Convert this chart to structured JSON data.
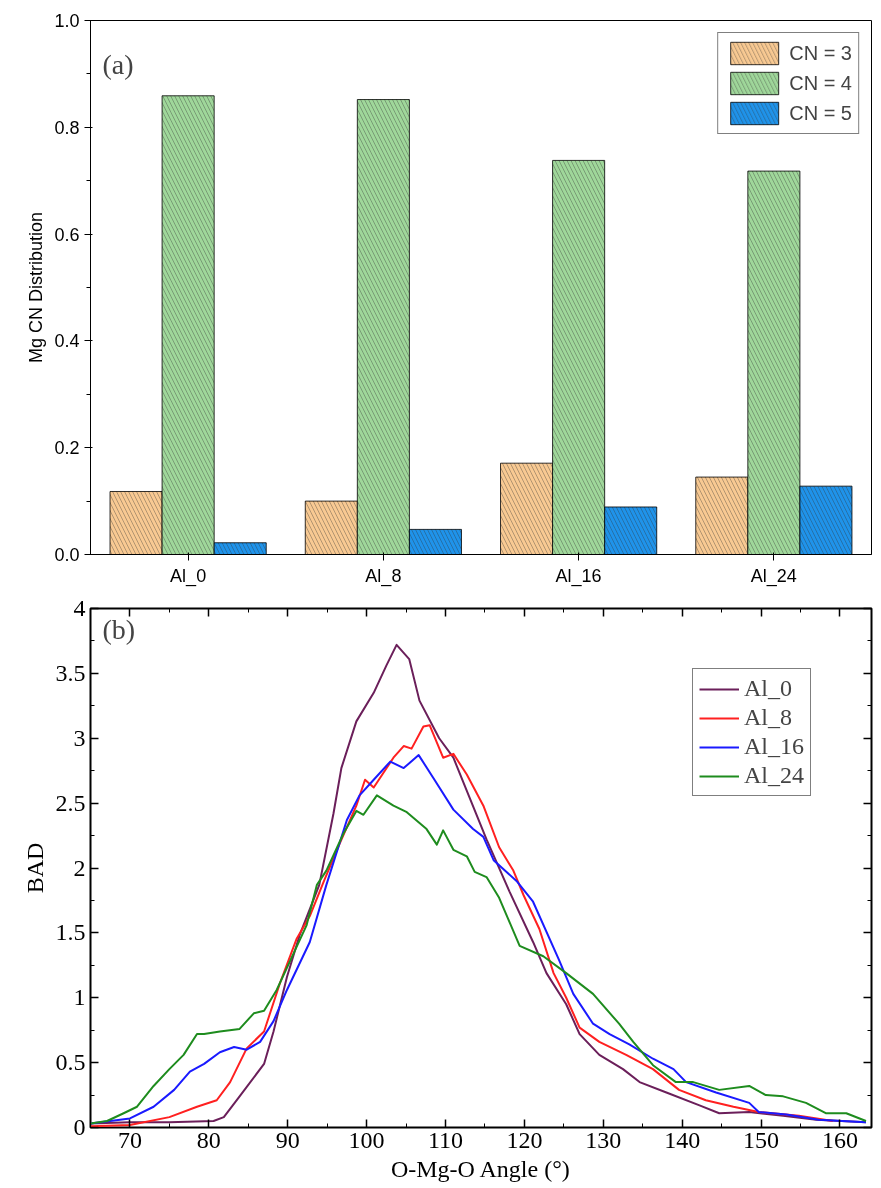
{
  "chart_data": [
    {
      "type": "bar",
      "ylabel": "Mg CN Distribution",
      "annotations": [
        "(a)"
      ],
      "categories": [
        "Al_0",
        "Al_8",
        "Al_16",
        "Al_24"
      ],
      "ylim": [
        0,
        1
      ],
      "yticks": [
        {
          "value": 0,
          "label": "0.0"
        },
        0.2,
        0.4,
        0.6,
        0.8,
        {
          "value": 1,
          "label": "1.0"
        }
      ],
      "legend": "top right",
      "grid": false,
      "series": [
        {
          "name": "CN = 3",
          "color": "#f8c992",
          "values": [
            0.118,
            0.1,
            0.171,
            0.145
          ]
        },
        {
          "name": "CN = 4",
          "color": "#9fd79a",
          "values": [
            0.859,
            0.852,
            0.738,
            0.718
          ]
        },
        {
          "name": "CN = 5",
          "color": "#1f93ea",
          "values": [
            0.022,
            0.047,
            0.089,
            0.128
          ]
        }
      ]
    },
    {
      "type": "line",
      "xlabel": "O-Mg-O Angle (°)",
      "ylabel": "BAD",
      "annotations": [
        "(b)"
      ],
      "xlim": [
        65,
        164
      ],
      "xticks": [
        70,
        80,
        90,
        100,
        110,
        120,
        130,
        140,
        150,
        160
      ],
      "ylim": [
        0,
        4
      ],
      "yticks": [
        0,
        0.5,
        1,
        1.5,
        2,
        2.5,
        3,
        3.5,
        4
      ],
      "legend": "top right",
      "grid": false,
      "series": [
        {
          "name": "Al_0",
          "color": "#6b1f5a",
          "x": [
            65,
            70,
            75,
            80.6,
            81.9,
            83.9,
            87,
            88.2,
            89.9,
            91.5,
            94,
            95.8,
            96.8,
            98.7,
            100.9,
            102.5,
            103.8,
            105.4,
            106.7,
            109.2,
            111,
            113,
            115.2,
            118.1,
            121.1,
            122.8,
            125.3,
            127,
            129.5,
            132.5,
            134.6,
            138,
            142.2,
            144.7,
            148.5,
            152.8,
            157,
            163.3
          ],
          "values": [
            0.03,
            0.04,
            0.04,
            0.05,
            0.08,
            0.24,
            0.49,
            0.74,
            1.16,
            1.48,
            1.87,
            2.42,
            2.77,
            3.13,
            3.35,
            3.56,
            3.72,
            3.61,
            3.29,
            3.0,
            2.85,
            2.55,
            2.22,
            1.82,
            1.43,
            1.19,
            0.95,
            0.72,
            0.56,
            0.45,
            0.35,
            0.27,
            0.17,
            0.11,
            0.12,
            0.09,
            0.06,
            0.04
          ]
        },
        {
          "name": "Al_8",
          "color": "#ff2020",
          "x": [
            65,
            70,
            75,
            78.5,
            81,
            82.7,
            84.8,
            87,
            89,
            91.1,
            92.8,
            94.6,
            96.6,
            98.7,
            99.8,
            100.9,
            103.4,
            104.7,
            105.7,
            107.2,
            108,
            109.7,
            111,
            112.7,
            114.8,
            116.8,
            118.6,
            119.9,
            121.9,
            123.7,
            125.3,
            127,
            129.5,
            132.9,
            136.3,
            139.6,
            143,
            146.5,
            149.7,
            154.8,
            159.1
          ],
          "values": [
            0.01,
            0.02,
            0.08,
            0.16,
            0.21,
            0.35,
            0.61,
            0.74,
            1.11,
            1.45,
            1.63,
            1.9,
            2.19,
            2.48,
            2.68,
            2.62,
            2.85,
            2.94,
            2.92,
            3.09,
            3.1,
            2.85,
            2.88,
            2.72,
            2.48,
            2.16,
            1.98,
            1.79,
            1.53,
            1.19,
            1.0,
            0.77,
            0.66,
            0.56,
            0.45,
            0.29,
            0.21,
            0.16,
            0.12,
            0.09,
            0.05
          ]
        },
        {
          "name": "Al_16",
          "color": "#1a1aff",
          "x": [
            65,
            70,
            73,
            75.6,
            77.6,
            79.4,
            81.4,
            83.2,
            84.8,
            86.5,
            88.2,
            89.9,
            92.8,
            94.9,
            97.5,
            99.1,
            100.9,
            103,
            104.7,
            106.6,
            108.5,
            111,
            113.5,
            114.8,
            116.1,
            119,
            121.1,
            124.4,
            126.2,
            128.7,
            130.8,
            133.3,
            136.3,
            138.9,
            140.5,
            144.3,
            148.5,
            149.7,
            153.2,
            157.3,
            163.3
          ],
          "values": [
            0.03,
            0.07,
            0.16,
            0.29,
            0.43,
            0.49,
            0.58,
            0.62,
            0.6,
            0.66,
            0.82,
            1.06,
            1.43,
            1.87,
            2.37,
            2.56,
            2.68,
            2.82,
            2.77,
            2.87,
            2.69,
            2.45,
            2.3,
            2.24,
            2.06,
            1.9,
            1.74,
            1.29,
            1.03,
            0.8,
            0.72,
            0.64,
            0.53,
            0.45,
            0.35,
            0.27,
            0.19,
            0.12,
            0.1,
            0.06,
            0.04
          ]
        },
        {
          "name": "Al_24",
          "color": "#1e8c1e",
          "x": [
            65,
            67.1,
            69.2,
            70.9,
            73,
            75,
            76.8,
            78.5,
            79.4,
            81.4,
            83.9,
            85.7,
            87,
            88.6,
            90.8,
            92.4,
            93.7,
            94.9,
            97.1,
            98.7,
            99.6,
            101.3,
            103.4,
            105.1,
            107.6,
            108.9,
            109.7,
            111,
            112.7,
            113.7,
            115.2,
            116.8,
            119.4,
            122.4,
            125.3,
            128.7,
            132,
            133.8,
            136.3,
            139.2,
            141.4,
            144.7,
            148.5,
            150.6,
            152.8,
            155.7,
            158.2,
            160.8,
            163.3
          ],
          "values": [
            0.03,
            0.05,
            0.11,
            0.16,
            0.32,
            0.45,
            0.56,
            0.72,
            0.72,
            0.74,
            0.76,
            0.88,
            0.9,
            1.06,
            1.35,
            1.56,
            1.87,
            1.98,
            2.27,
            2.44,
            2.41,
            2.56,
            2.48,
            2.43,
            2.3,
            2.18,
            2.29,
            2.14,
            2.09,
            1.97,
            1.93,
            1.77,
            1.4,
            1.32,
            1.19,
            1.03,
            0.8,
            0.66,
            0.48,
            0.35,
            0.35,
            0.29,
            0.32,
            0.25,
            0.24,
            0.19,
            0.11,
            0.11,
            0.05
          ]
        }
      ]
    }
  ]
}
